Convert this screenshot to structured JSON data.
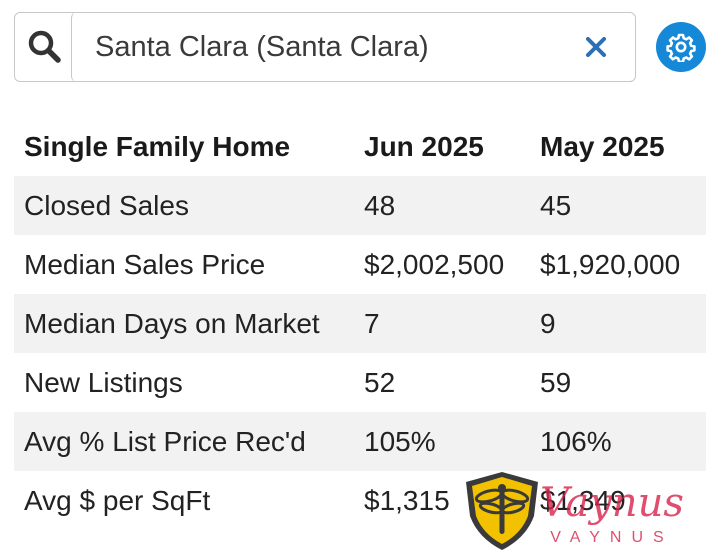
{
  "search": {
    "value": "Santa Clara (Santa Clara)",
    "icon": "search-icon"
  },
  "clear_icon": "close-icon",
  "settings_icon": "gear-icon",
  "colors": {
    "accent": "#1588d8",
    "logo_gold": "#f2c200",
    "logo_red": "#d8234a"
  },
  "table": {
    "headers": [
      "Single Family Home",
      "Jun 2025",
      "May 2025"
    ],
    "rows": [
      {
        "label": "Closed Sales",
        "jun": "48",
        "may": "45"
      },
      {
        "label": "Median Sales Price",
        "jun": "$2,002,500",
        "may": "$1,920,000"
      },
      {
        "label": "Median Days on Market",
        "jun": "7",
        "may": "9"
      },
      {
        "label": "New Listings",
        "jun": "52",
        "may": "59"
      },
      {
        "label": "Avg % List Price Rec'd",
        "jun": "105%",
        "may": "106%"
      },
      {
        "label": "Avg $ per SqFt",
        "jun": "$1,315",
        "may": "$1,349"
      }
    ]
  },
  "watermark": {
    "script": "Vaynus",
    "caps": "VAYNUS"
  }
}
